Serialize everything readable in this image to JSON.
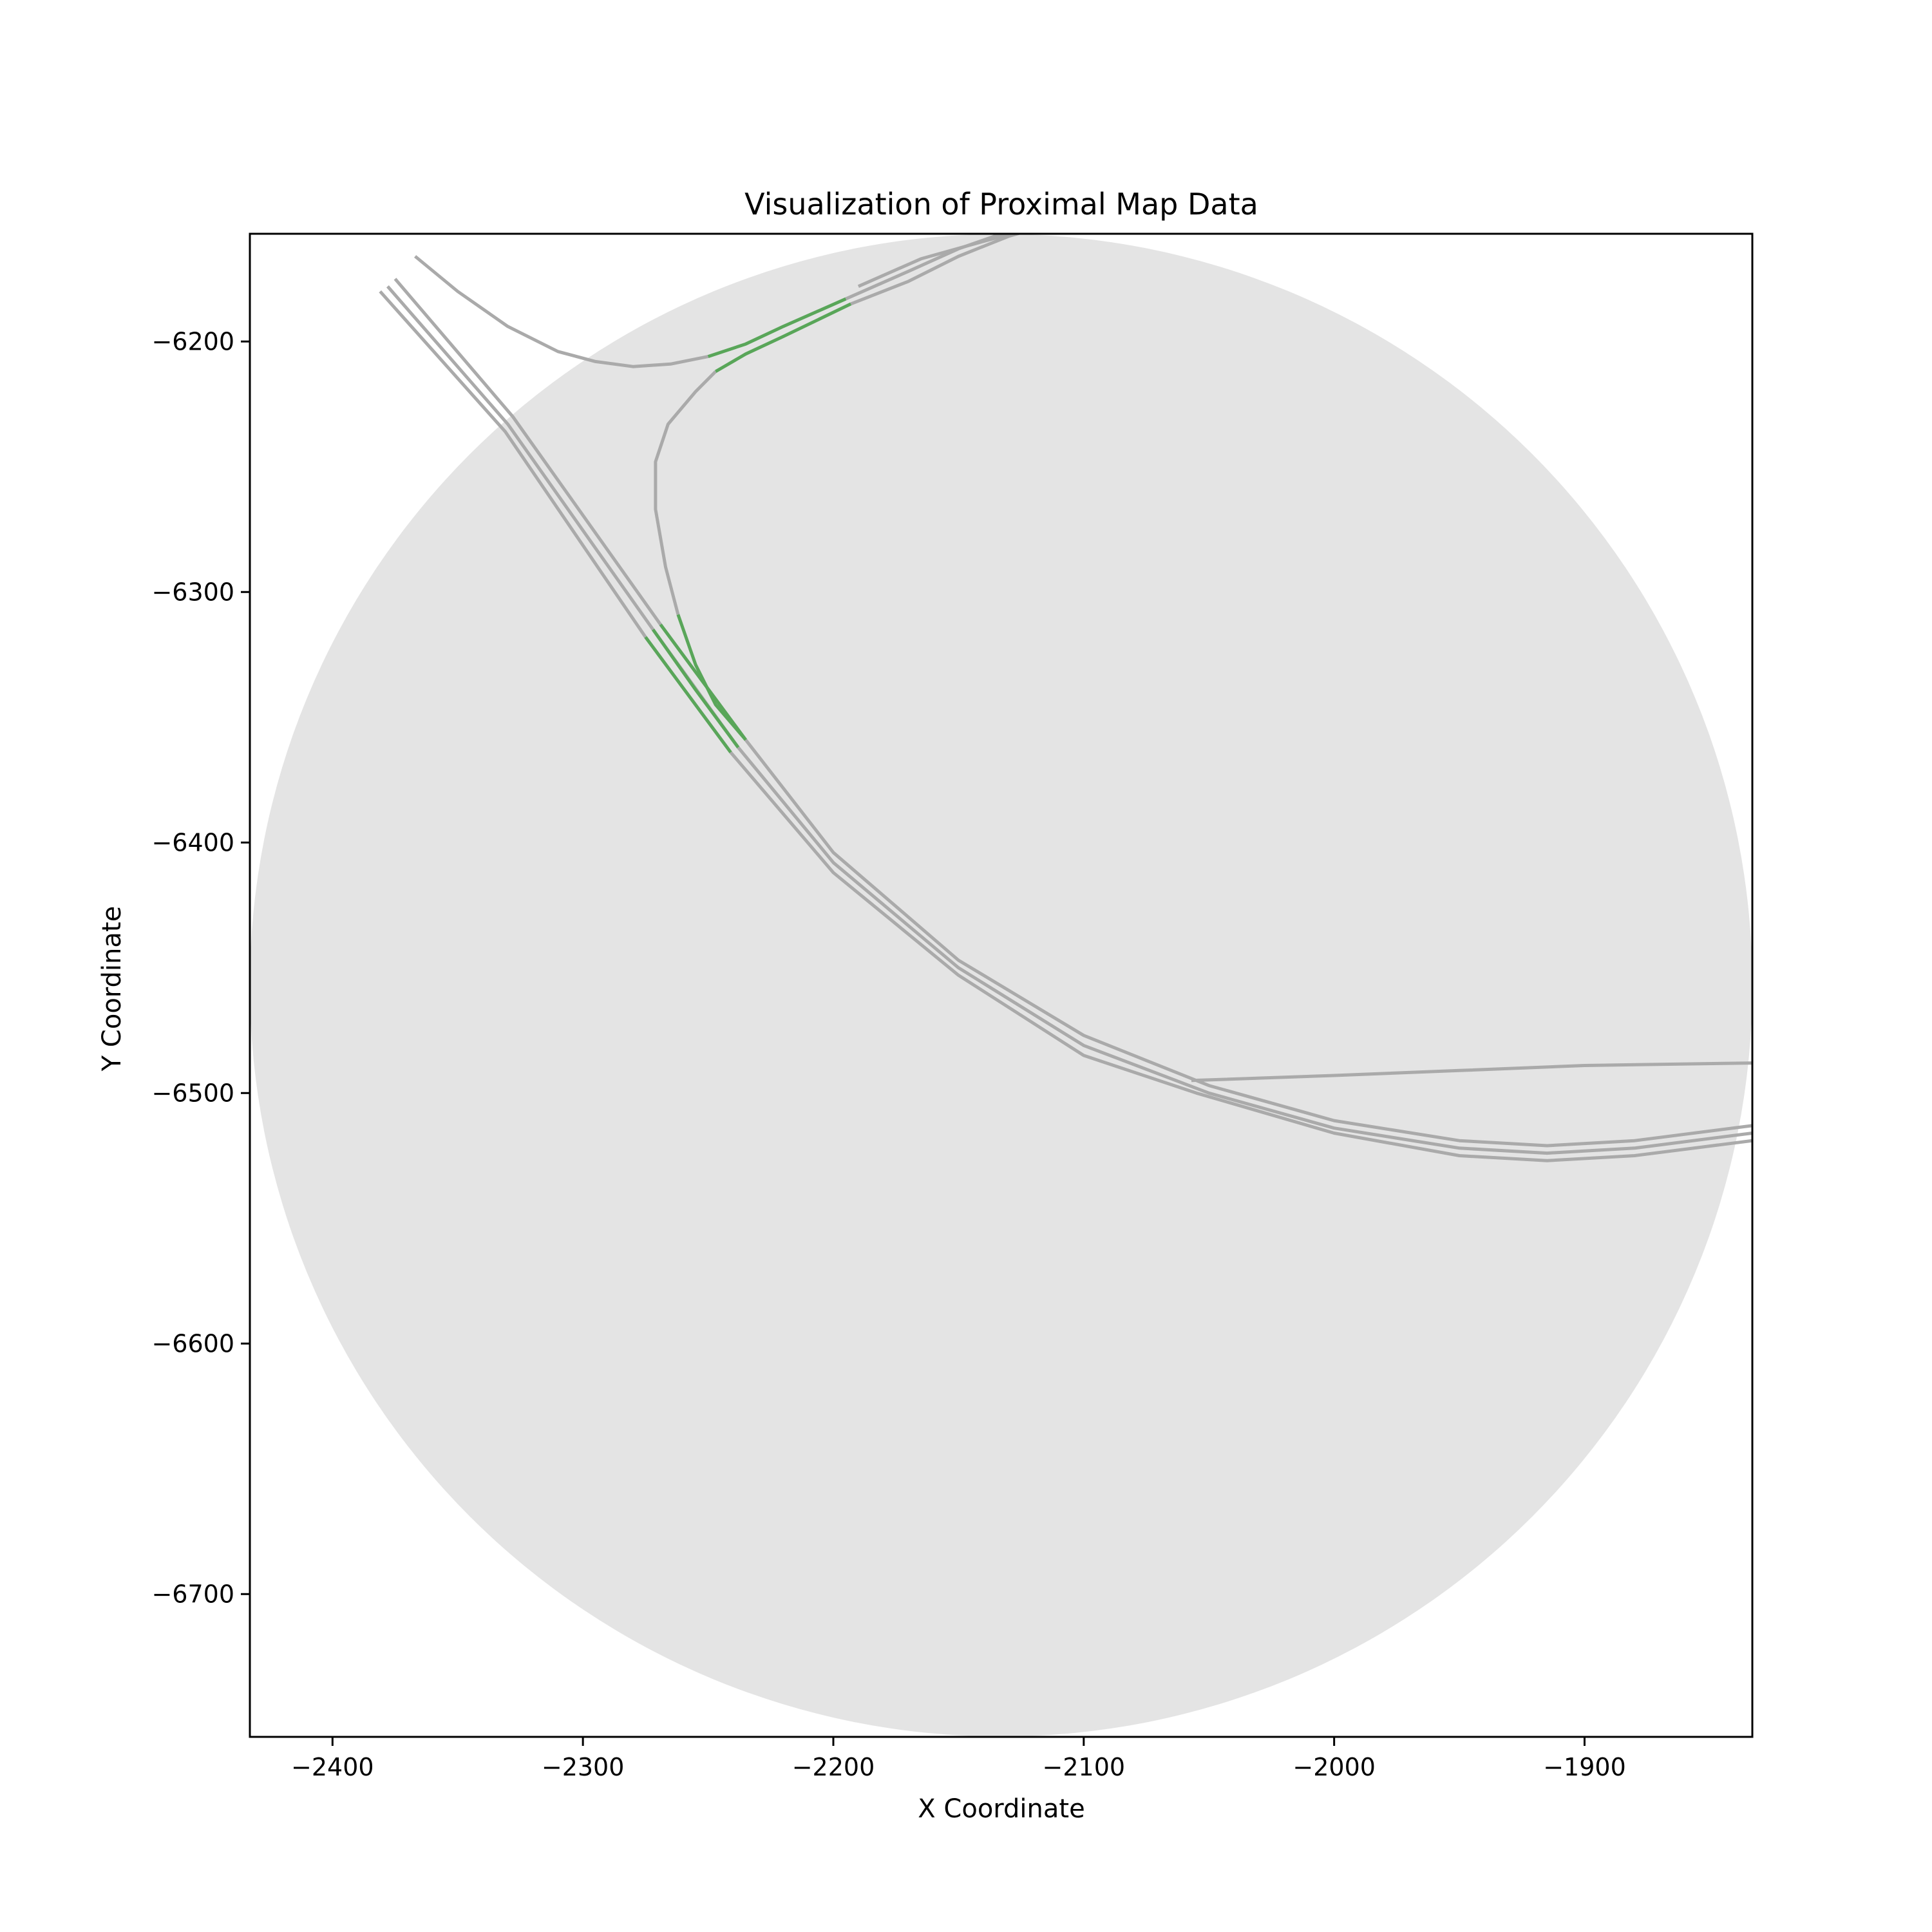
{
  "chart_data": {
    "type": "line",
    "title": "Visualization of Proximal Map Data",
    "xlabel": "X Coordinate",
    "ylabel": "Y Coordinate",
    "xlim": [
      -2433,
      -1833
    ],
    "ylim": [
      -6757,
      -6157
    ],
    "x_ticks": [
      -2400,
      -2300,
      -2200,
      -2100,
      -2000,
      -1900
    ],
    "y_ticks": [
      -6200,
      -6300,
      -6400,
      -6500,
      -6600,
      -6700
    ],
    "x_tick_labels": [
      "−2400",
      "−2300",
      "−2200",
      "−2100",
      "−2000",
      "−1900"
    ],
    "y_tick_labels": [
      "−6200",
      "−6300",
      "−6400",
      "−6500",
      "−6600",
      "−6700"
    ],
    "grid": false,
    "colors": {
      "region": "#e4e4e4",
      "lane": "#aaaaaa",
      "highlight": "#59a659",
      "axes": "#000000"
    },
    "region": {
      "center_x": -2133,
      "center_y": -6457,
      "radius": 300
    },
    "series": [
      {
        "highlight": false,
        "x": [
          -2381,
          -2331,
          -2275,
          -2241,
          -2200,
          -2150,
          -2100,
          -2055,
          -2000,
          -1950,
          -1915,
          -1880,
          -1833
        ],
        "y": [
          -6180,
          -6236,
          -6318,
          -6364,
          -6412,
          -6453,
          -6485,
          -6500,
          -6516,
          -6525,
          -6527,
          -6525,
          -6519
        ]
      },
      {
        "highlight": false,
        "x": [
          -2378,
          -2330,
          -2272,
          -2238,
          -2200,
          -2150,
          -2100,
          -2050,
          -2000,
          -1950,
          -1915,
          -1880,
          -1833
        ],
        "y": [
          -6178,
          -6233,
          -6315,
          -6362,
          -6408,
          -6450,
          -6481,
          -6500,
          -6514,
          -6522,
          -6524,
          -6522,
          -6516
        ]
      },
      {
        "highlight": false,
        "x": [
          -2375,
          -2328,
          -2269,
          -2235,
          -2200,
          -2150,
          -2100,
          -2050,
          -2000,
          -1950,
          -1915,
          -1880,
          -1833
        ],
        "y": [
          -6175,
          -6230,
          -6313,
          -6359,
          -6404,
          -6447,
          -6477,
          -6497,
          -6511,
          -6519,
          -6521,
          -6519,
          -6513
        ]
      },
      {
        "highlight": true,
        "x": [
          -2275,
          -2258,
          -2241
        ],
        "y": [
          -6318,
          -6341,
          -6364
        ]
      },
      {
        "highlight": true,
        "x": [
          -2272,
          -2255,
          -2238
        ],
        "y": [
          -6315,
          -6339,
          -6362
        ]
      },
      {
        "highlight": true,
        "x": [
          -2269,
          -2252,
          -2235
        ],
        "y": [
          -6313,
          -6336,
          -6359
        ]
      },
      {
        "highlight": false,
        "x": [
          -2367,
          -2350,
          -2330,
          -2310,
          -2295,
          -2280,
          -2265,
          -2250
        ],
        "y": [
          -6166,
          -6180,
          -6194,
          -6204,
          -6208,
          -6210,
          -6209,
          -6206
        ]
      },
      {
        "highlight": true,
        "x": [
          -2250,
          -2235,
          -2220,
          -2195
        ],
        "y": [
          -6206,
          -6201,
          -6194,
          -6183
        ]
      },
      {
        "highlight": false,
        "x": [
          -2195,
          -2170,
          -2150,
          -2130,
          -2123
        ],
        "y": [
          -6183,
          -6172,
          -6163,
          -6156,
          -6154
        ]
      },
      {
        "highlight": false,
        "x": [
          -2262,
          -2267,
          -2271,
          -2271,
          -2266,
          -2255,
          -2247
        ],
        "y": [
          -6309,
          -6290,
          -6267,
          -6248,
          -6233,
          -6220,
          -6212
        ]
      },
      {
        "highlight": true,
        "x": [
          -2247,
          -2235,
          -2220,
          -2193
        ],
        "y": [
          -6212,
          -6205,
          -6198,
          -6185
        ]
      },
      {
        "highlight": false,
        "x": [
          -2193,
          -2170,
          -2150,
          -2130,
          -2123
        ],
        "y": [
          -6185,
          -6176,
          -6166,
          -6158,
          -6156
        ]
      },
      {
        "highlight": true,
        "x": [
          -2262,
          -2255,
          -2247,
          -2235
        ],
        "y": [
          -6309,
          -6329,
          -6345,
          -6359
        ]
      },
      {
        "highlight": false,
        "x": [
          -2190,
          -2165,
          -2140,
          -2125
        ],
        "y": [
          -6178,
          -6167,
          -6160,
          -6156
        ]
      },
      {
        "highlight": false,
        "x": [
          -2057,
          -2000,
          -1950,
          -1900,
          -1833
        ],
        "y": [
          -6495,
          -6493,
          -6491,
          -6489,
          -6488
        ]
      }
    ]
  }
}
